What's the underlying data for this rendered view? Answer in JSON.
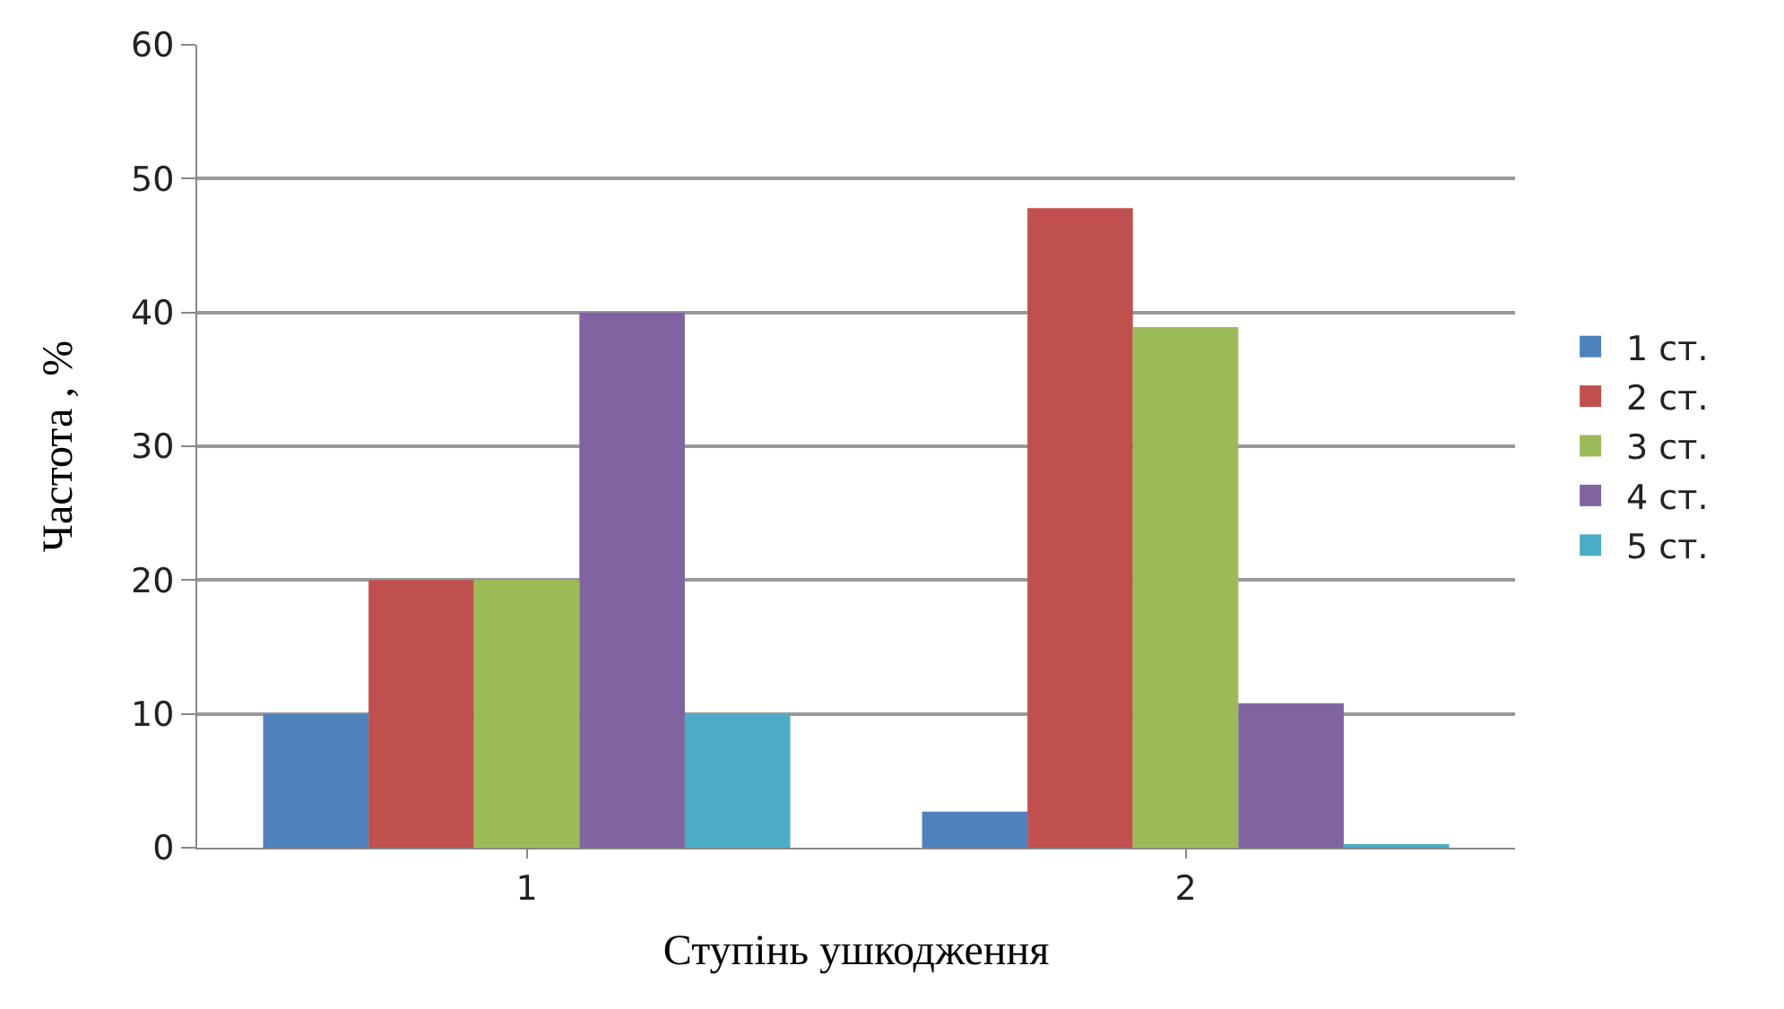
{
  "chart_data": {
    "type": "bar",
    "xlabel": "Ступінь ушкодження",
    "ylabel": "Частота , %",
    "categories": [
      "1",
      "2"
    ],
    "series": [
      {
        "name": "1 ст.",
        "color": "#4f81bd",
        "values": [
          10,
          2.7
        ]
      },
      {
        "name": "2 ст.",
        "color": "#c0504d",
        "values": [
          20,
          47.8
        ]
      },
      {
        "name": "3 ст.",
        "color": "#9bbb59",
        "values": [
          20,
          38.9
        ]
      },
      {
        "name": "4 ст.",
        "color": "#8064a2",
        "values": [
          40,
          10.8
        ]
      },
      {
        "name": "5 ст.",
        "color": "#4bacc6",
        "values": [
          10,
          0.2
        ]
      }
    ],
    "ylim": [
      0,
      60
    ],
    "yticks": [
      0,
      10,
      20,
      30,
      40,
      50,
      60
    ],
    "grid": "y",
    "legend": "right"
  }
}
